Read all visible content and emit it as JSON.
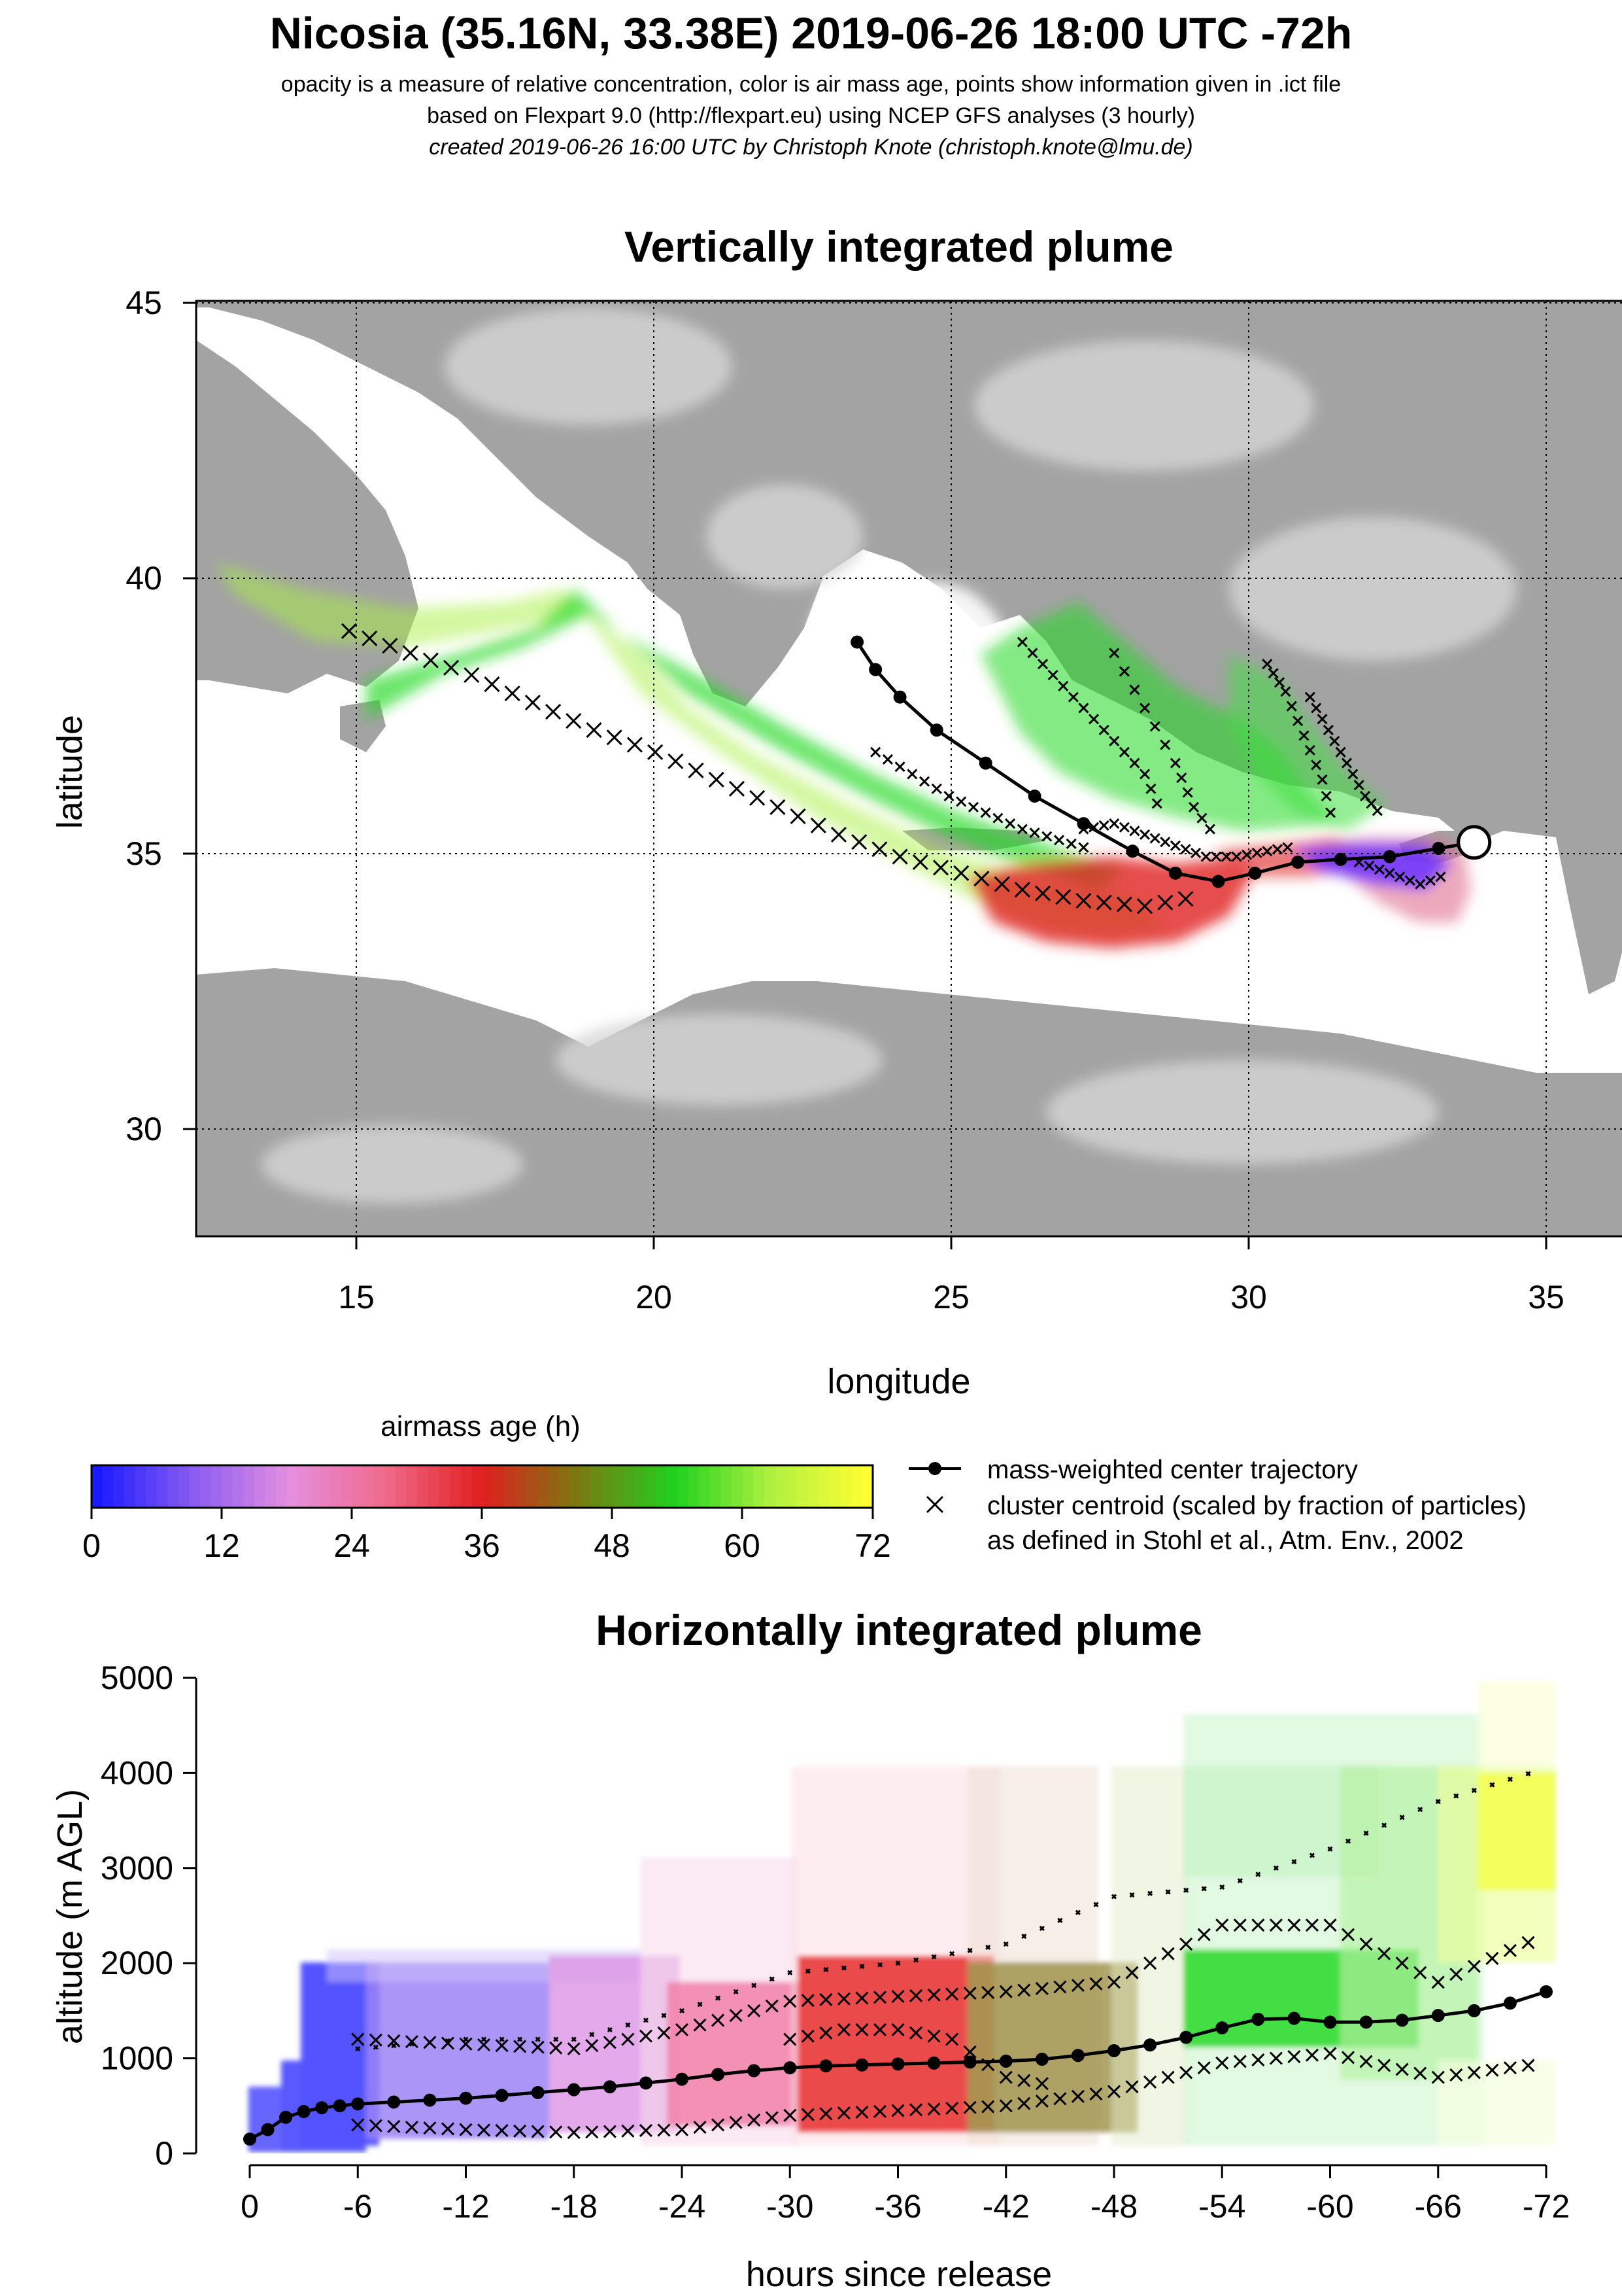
{
  "header": {
    "title": "Nicosia (35.16N, 33.38E) 2019-06-26 18:00 UTC -72h",
    "line1": "opacity is a measure of relative concentration, color is air mass age, points show information given in .ict file",
    "line2": "based on Flexpart 9.0 (http://flexpart.eu) using NCEP GFS analyses (3 hourly)",
    "line3": "created 2019-06-26 16:00 UTC by Christoph Knote (christoph.knote@lmu.de)"
  },
  "map": {
    "title": "Vertically integrated plume",
    "xlabel": "longitude",
    "ylabel": "latitude",
    "xticks": [
      "15",
      "20",
      "25",
      "30",
      "35"
    ],
    "yticks": [
      "45",
      "40",
      "35",
      "30"
    ],
    "colors": {
      "sea": "#ffffff",
      "land": "#a9a9a9",
      "land_light": "#d6d6d6"
    }
  },
  "colorbar": {
    "title": "airmass age (h)",
    "ticks": [
      "0",
      "12",
      "24",
      "36",
      "48",
      "60",
      "72"
    ],
    "stops": [
      "#1a1aff",
      "#8a5cf0",
      "#e58fe0",
      "#f06a8a",
      "#e01f1f",
      "#7a7a10",
      "#1fd11f",
      "#b0f040",
      "#ffff33"
    ]
  },
  "legend": {
    "center": "mass-weighted center trajectory",
    "cluster": "cluster centroid (scaled by fraction of particles)",
    "ref": "as defined in Stohl et al., Atm. Env., 2002"
  },
  "chart_data": [
    {
      "type": "scatter",
      "title": "Vertically integrated plume",
      "xlabel": "longitude",
      "ylabel": "latitude",
      "xlim": [
        12.5,
        36
      ],
      "ylim": [
        28,
        45
      ],
      "release": {
        "lon": 33.38,
        "lat": 35.16
      },
      "center_trajectory": {
        "lon": [
          33.38,
          32.8,
          32.0,
          31.2,
          30.5,
          29.8,
          29.2,
          28.5,
          27.8,
          27.0,
          26.2,
          25.4,
          24.6,
          24.0,
          23.6,
          23.3
        ],
        "lat": [
          35.16,
          35.05,
          34.9,
          34.85,
          34.8,
          34.6,
          34.45,
          34.6,
          35.0,
          35.5,
          36.0,
          36.6,
          37.2,
          37.8,
          38.3,
          38.8
        ]
      },
      "cluster_tracks": [
        {
          "lon": [
            15.0,
            16.0,
            17.0,
            18.0,
            19.0,
            20.0,
            21.0,
            22.0,
            23.0,
            24.0,
            25.0,
            26.0,
            27.0,
            28.0,
            29.0
          ],
          "lat": [
            39.0,
            38.6,
            38.2,
            37.7,
            37.2,
            36.8,
            36.3,
            35.8,
            35.3,
            34.9,
            34.6,
            34.3,
            34.1,
            34.0,
            34.2
          ]
        },
        {
          "lon": [
            26.0,
            26.5,
            27.0,
            27.5,
            28.0,
            28.3
          ],
          "lat": [
            38.8,
            38.2,
            37.6,
            37.0,
            36.4,
            35.6
          ]
        },
        {
          "lon": [
            27.5,
            28.0,
            28.5,
            28.8,
            29.2
          ],
          "lat": [
            38.6,
            37.6,
            36.6,
            35.8,
            35.2
          ]
        },
        {
          "lon": [
            30.0,
            30.3,
            30.6,
            30.9,
            31.1
          ],
          "lat": [
            38.4,
            37.9,
            37.1,
            36.3,
            35.4
          ]
        },
        {
          "lon": [
            30.7,
            31.0,
            31.3,
            31.6,
            31.9
          ],
          "lat": [
            37.8,
            37.2,
            36.6,
            36.0,
            35.6
          ]
        },
        {
          "lon": [
            23.6,
            24.2,
            24.8,
            25.4,
            26.0,
            26.6,
            27.2
          ],
          "lat": [
            36.8,
            36.4,
            36.0,
            35.7,
            35.4,
            35.2,
            35.0
          ]
        },
        {
          "lon": [
            27.0,
            27.5,
            28.0,
            28.5,
            29.0,
            29.5,
            30.0,
            30.5
          ],
          "lat": [
            35.4,
            35.5,
            35.3,
            35.1,
            34.9,
            34.9,
            35.0,
            35.1
          ]
        },
        {
          "lon": [
            31.5,
            32.0,
            32.5,
            33.0
          ],
          "lat": [
            34.8,
            34.6,
            34.4,
            34.6
          ]
        }
      ]
    },
    {
      "type": "scatter",
      "title": "Horizontally integrated plume",
      "xlabel": "hours since release",
      "ylabel": "altitude (m AGL)",
      "xlim": [
        0,
        -72
      ],
      "ylim": [
        0,
        5000
      ],
      "xticks": [
        "0",
        "-6",
        "-12",
        "-18",
        "-24",
        "-30",
        "-36",
        "-42",
        "-48",
        "-54",
        "-60",
        "-66",
        "-72"
      ],
      "yticks": [
        "0",
        "1000",
        "2000",
        "3000",
        "4000",
        "5000"
      ],
      "center_trajectory": {
        "hours": [
          0,
          -1,
          -2,
          -3,
          -4,
          -5,
          -6,
          -8,
          -10,
          -12,
          -14,
          -16,
          -18,
          -20,
          -22,
          -24,
          -26,
          -28,
          -30,
          -32,
          -34,
          -36,
          -38,
          -40,
          -42,
          -44,
          -46,
          -48,
          -50,
          -52,
          -54,
          -56,
          -58,
          -60,
          -62,
          -64,
          -66,
          -68,
          -70,
          -72
        ],
        "altitude": [
          150,
          250,
          380,
          440,
          480,
          500,
          520,
          540,
          560,
          580,
          610,
          640,
          670,
          700,
          740,
          780,
          830,
          870,
          900,
          920,
          930,
          940,
          950,
          960,
          970,
          990,
          1030,
          1080,
          1140,
          1220,
          1320,
          1410,
          1420,
          1380,
          1380,
          1400,
          1450,
          1500,
          1580,
          1700
        ]
      },
      "cluster_tracks": [
        {
          "hours": [
            -6,
            -12,
            -18,
            -24,
            -30,
            -36,
            -42,
            -48,
            -54,
            -60,
            -66,
            -72
          ],
          "altitude": [
            300,
            250,
            220,
            250,
            400,
            450,
            500,
            650,
            950,
            1050,
            800,
            950
          ]
        },
        {
          "hours": [
            -6,
            -12,
            -18,
            -24,
            -30,
            -36,
            -42,
            -48,
            -54,
            -60,
            -66,
            -72
          ],
          "altitude": [
            1200,
            1150,
            1100,
            1300,
            1600,
            1650,
            1700,
            1800,
            2400,
            2400,
            1800,
            2300
          ]
        },
        {
          "hours": [
            -6,
            -12,
            -18,
            -24,
            -30,
            -36,
            -42,
            -48,
            -54,
            -60,
            -66,
            -72
          ],
          "altitude": [
            1100,
            1200,
            1200,
            1500,
            1900,
            2000,
            2200,
            2700,
            2800,
            3200,
            3700,
            4050
          ]
        },
        {
          "hours": [
            -30,
            -33,
            -36,
            -39,
            -42,
            -45
          ],
          "altitude": [
            1200,
            1300,
            1300,
            1200,
            800,
            700
          ]
        }
      ]
    }
  ]
}
